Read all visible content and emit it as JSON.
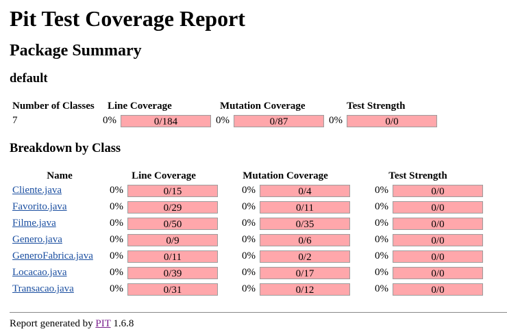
{
  "page": {
    "title": "Pit Test Coverage Report",
    "package_summary_heading": "Package Summary",
    "package_name": "default",
    "breakdown_heading": "Breakdown by Class"
  },
  "summary": {
    "headers": {
      "classes": "Number of Classes",
      "line": "Line Coverage",
      "mutation": "Mutation Coverage",
      "strength": "Test Strength"
    },
    "number_of_classes": "7",
    "line_pct": "0%",
    "line_ratio": "0/184",
    "mutation_pct": "0%",
    "mutation_ratio": "0/87",
    "strength_pct": "0%",
    "strength_ratio": "0/0"
  },
  "breakdown": {
    "headers": {
      "name": "Name",
      "line": "Line Coverage",
      "mutation": "Mutation Coverage",
      "strength": "Test Strength"
    },
    "rows": [
      {
        "name": "Cliente.java",
        "line_pct": "0%",
        "line": "0/15",
        "mut_pct": "0%",
        "mut": "0/4",
        "str_pct": "0%",
        "str": "0/0"
      },
      {
        "name": "Favorito.java",
        "line_pct": "0%",
        "line": "0/29",
        "mut_pct": "0%",
        "mut": "0/11",
        "str_pct": "0%",
        "str": "0/0"
      },
      {
        "name": "Filme.java",
        "line_pct": "0%",
        "line": "0/50",
        "mut_pct": "0%",
        "mut": "0/35",
        "str_pct": "0%",
        "str": "0/0"
      },
      {
        "name": "Genero.java",
        "line_pct": "0%",
        "line": "0/9",
        "mut_pct": "0%",
        "mut": "0/6",
        "str_pct": "0%",
        "str": "0/0"
      },
      {
        "name": "GeneroFabrica.java",
        "line_pct": "0%",
        "line": "0/11",
        "mut_pct": "0%",
        "mut": "0/2",
        "str_pct": "0%",
        "str": "0/0"
      },
      {
        "name": "Locacao.java",
        "line_pct": "0%",
        "line": "0/39",
        "mut_pct": "0%",
        "mut": "0/17",
        "str_pct": "0%",
        "str": "0/0"
      },
      {
        "name": "Transacao.java",
        "line_pct": "0%",
        "line": "0/31",
        "mut_pct": "0%",
        "mut": "0/12",
        "str_pct": "0%",
        "str": "0/0"
      }
    ]
  },
  "footer": {
    "prefix": "Report generated by",
    "link": "PIT",
    "version": "1.6.8"
  },
  "colors": {
    "bar_fill": "#ffa7ab",
    "bar_border": "#9c9c9c",
    "link": "#1a4ea0",
    "visited_link": "#7a1f8c"
  }
}
